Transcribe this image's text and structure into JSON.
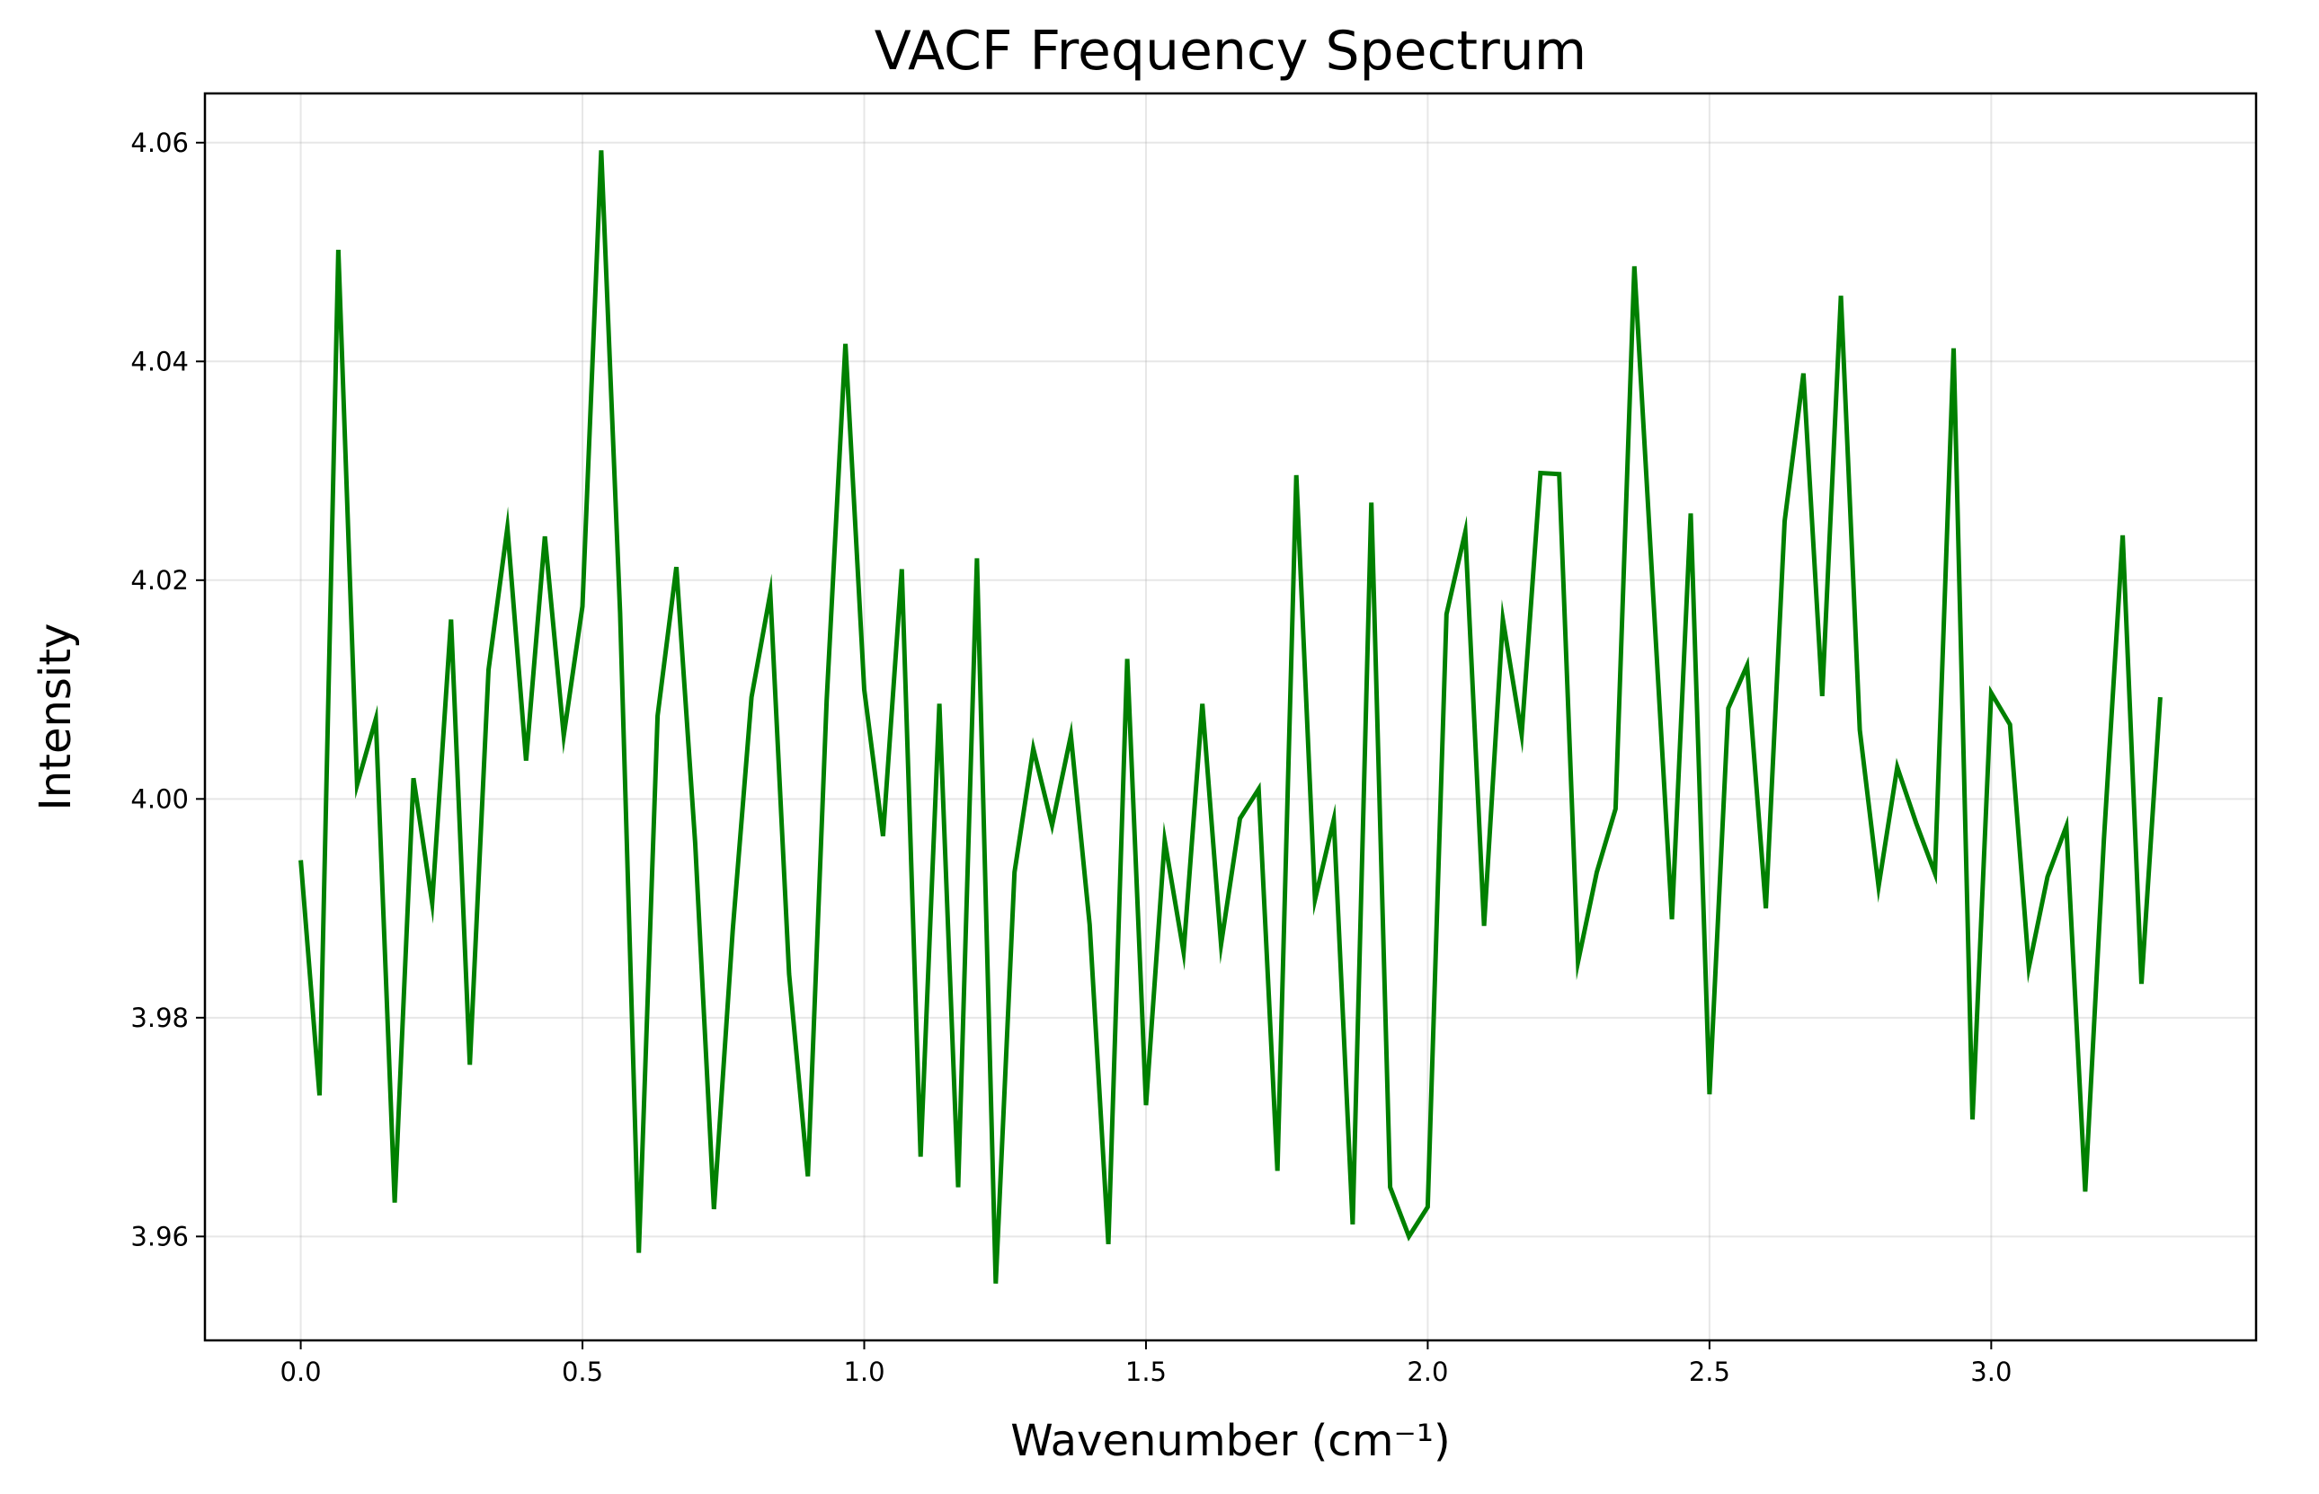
{
  "chart_data": {
    "type": "line",
    "title": "VACF Frequency Spectrum",
    "xlabel": "Wavenumber (cm⁻¹)",
    "ylabel": "Intensity",
    "xlim": [
      -0.17,
      3.47
    ],
    "ylim": [
      3.9505,
      4.0645
    ],
    "xticks": [
      0.0,
      0.5,
      1.0,
      1.5,
      2.0,
      2.5,
      3.0
    ],
    "xtick_labels": [
      "0.0",
      "0.5",
      "1.0",
      "1.5",
      "2.0",
      "2.5",
      "3.0"
    ],
    "yticks": [
      3.96,
      3.98,
      4.0,
      4.02,
      4.04,
      4.06
    ],
    "ytick_labels": [
      "3.96",
      "3.98",
      "4.00",
      "4.02",
      "4.04",
      "4.06"
    ],
    "grid": true,
    "line_color": "#008000",
    "series": [
      {
        "x": [
          0.0,
          0.0333,
          0.0667,
          0.1,
          0.1333,
          0.1667,
          0.2,
          0.2333,
          0.2667,
          0.3,
          0.3333,
          0.3667,
          0.4,
          0.4333,
          0.4667,
          0.5,
          0.5333,
          0.5667,
          0.6,
          0.6333,
          0.6667,
          0.7,
          0.7333,
          0.7667,
          0.8,
          0.8333,
          0.8667,
          0.9,
          0.9333,
          0.9667,
          1.0,
          1.0333,
          1.0667,
          1.1,
          1.1333,
          1.1667,
          1.2,
          1.2333,
          1.2667,
          1.3,
          1.3333,
          1.3667,
          1.4,
          1.4333,
          1.4667,
          1.5,
          1.5333,
          1.5667,
          1.6,
          1.6333,
          1.6667,
          1.7,
          1.7333,
          1.7667,
          1.8,
          1.8333,
          1.8667,
          1.9,
          1.9333,
          1.9667,
          2.0,
          2.0333,
          2.0667,
          2.1,
          2.1333,
          2.1667,
          2.2,
          2.2333,
          2.2667,
          2.3,
          2.3333,
          2.3667,
          2.4,
          2.4333,
          2.4667,
          2.5,
          2.5333,
          2.5667,
          2.6,
          2.6333,
          2.6667,
          2.7,
          2.7333,
          2.7667,
          2.8,
          2.8333,
          2.8667,
          2.9,
          2.9333,
          2.9667,
          3.0,
          3.0333,
          3.0667,
          3.1,
          3.1333,
          3.1667,
          3.2,
          3.2333,
          3.2667,
          3.3
        ],
        "y": [
          3.9944,
          3.9729,
          4.0502,
          4.0013,
          4.0073,
          3.9631,
          4.0019,
          3.9905,
          4.0164,
          3.9757,
          4.0118,
          4.0248,
          4.0035,
          4.024,
          4.0058,
          4.0176,
          4.0593,
          4.017,
          3.9585,
          4.0076,
          4.0212,
          3.996,
          3.9625,
          3.988,
          4.0093,
          4.0188,
          3.984,
          3.9655,
          4.009,
          4.0416,
          4.01,
          3.9966,
          4.021,
          3.9673,
          4.0087,
          3.9645,
          4.022,
          3.9557,
          3.9933,
          4.0046,
          3.9976,
          4.0058,
          3.9885,
          3.9593,
          4.0128,
          3.972,
          3.9962,
          3.986,
          4.0087,
          3.9867,
          3.9982,
          4.0009,
          3.966,
          4.0296,
          3.9908,
          3.9981,
          3.9611,
          4.0271,
          3.9645,
          3.96,
          3.9627,
          4.0169,
          4.0244,
          3.9884,
          4.0164,
          4.0059,
          4.0298,
          4.0297,
          3.9851,
          3.9933,
          3.9991,
          4.0487,
          4.0187,
          3.989,
          4.0261,
          3.973,
          4.0083,
          4.0122,
          3.99,
          4.0254,
          4.0389,
          4.0094,
          4.046,
          4.0063,
          3.992,
          4.0029,
          3.9978,
          3.9932,
          4.0412,
          3.9707,
          4.0097,
          4.0068,
          3.9846,
          3.9929,
          3.9975,
          3.9641,
          3.9963,
          4.0241,
          3.9831,
          4.0093
        ]
      }
    ]
  }
}
